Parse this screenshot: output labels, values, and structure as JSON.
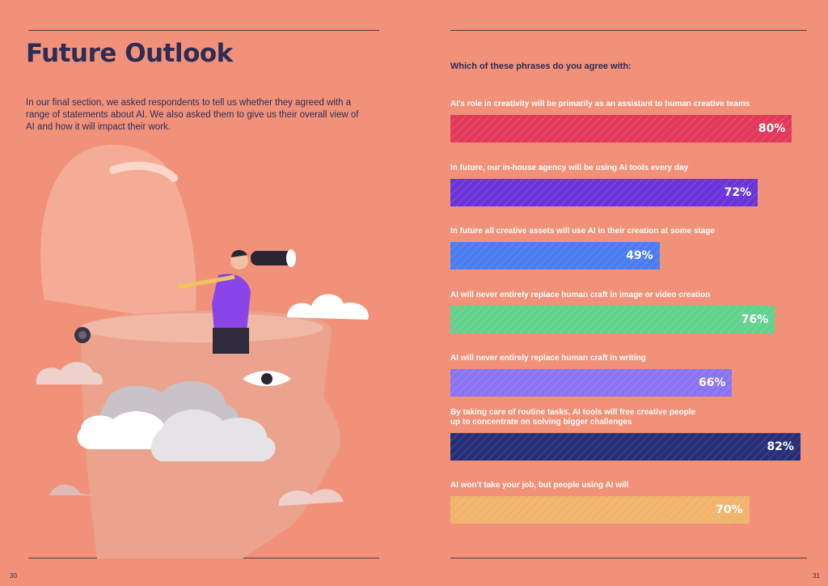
{
  "left_page": {
    "title": "Future Outlook",
    "intro": "In our final section, we asked respondents to tell us whether they agreed with a range of statements about AI. We also asked them to give us their overall view of AI and how it will impact their work.",
    "page_number": "30"
  },
  "right_page": {
    "page_number": "31"
  },
  "chart_data": {
    "type": "bar",
    "orientation": "horizontal",
    "title": "Which of these phrases do you agree with:",
    "categories": [
      "AI's role in creativity will be primarily as an assistant to human creative teams",
      "In future, our in-house agency will be using AI tools every day",
      "In future all creative assets will use AI in their creation at some stage",
      "AI will never entirely replace human craft in image or video creation",
      "AI will never entirely replace human craft in writing",
      "By taking care of routine tasks, AI tools will free creative people\nup to concentrate on solving bigger challenges",
      "AI won't take your job, but people using AI will"
    ],
    "values": [
      80,
      72,
      49,
      76,
      66,
      82,
      70
    ],
    "value_labels": [
      "80%",
      "72%",
      "49%",
      "76%",
      "66%",
      "82%",
      "70%"
    ],
    "colors": [
      "#e2395a",
      "#6a34da",
      "#4a7df0",
      "#62d28e",
      "#8b74f2",
      "#272f78",
      "#f0b46c"
    ]
  }
}
